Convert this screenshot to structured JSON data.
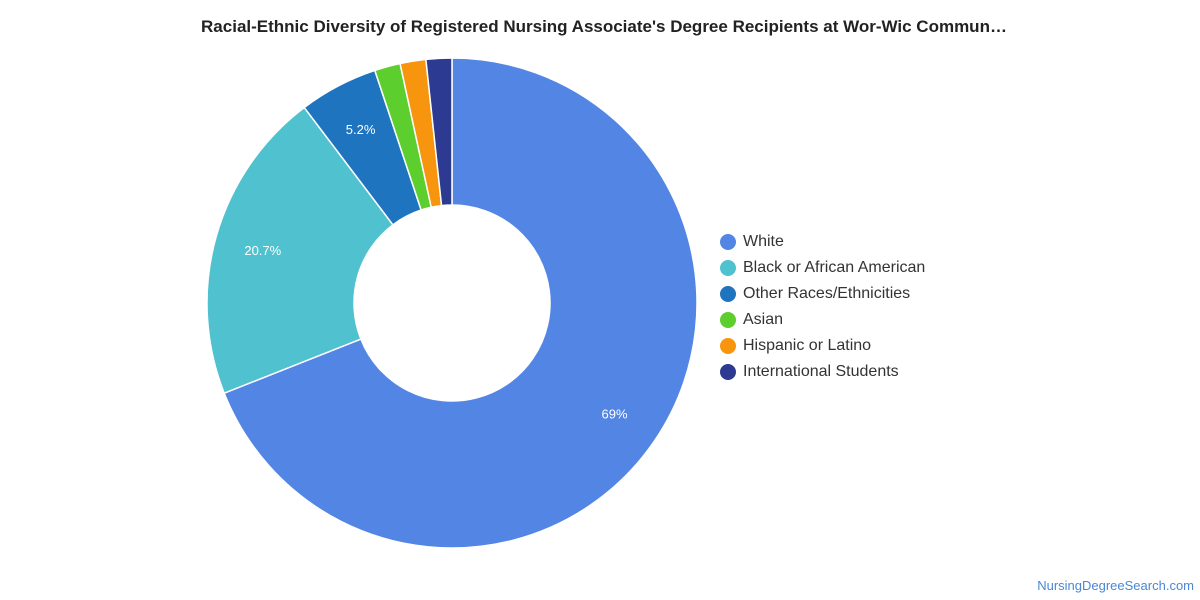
{
  "chart_data": {
    "type": "pie",
    "title": "Racial-Ethnic Diversity of Registered Nursing Associate's Degree Recipients at Wor-Wic Commun…",
    "donut": true,
    "legend_position": "right",
    "slices": [
      {
        "label": "White",
        "value": 69.0,
        "display": "69%",
        "color": "#5386e4"
      },
      {
        "label": "Black or African American",
        "value": 20.7,
        "display": "20.7%",
        "color": "#50c1ce"
      },
      {
        "label": "Other Races/Ethnicities",
        "value": 5.2,
        "display": "5.2%",
        "color": "#1f74c0"
      },
      {
        "label": "Asian",
        "value": 1.7,
        "display": "",
        "color": "#5cce2e"
      },
      {
        "label": "Hispanic or Latino",
        "value": 1.7,
        "display": "",
        "color": "#f7950e"
      },
      {
        "label": "International Students",
        "value": 1.7,
        "display": "",
        "color": "#2c3b91"
      }
    ]
  },
  "watermark": "NursingDegreeSearch.com"
}
